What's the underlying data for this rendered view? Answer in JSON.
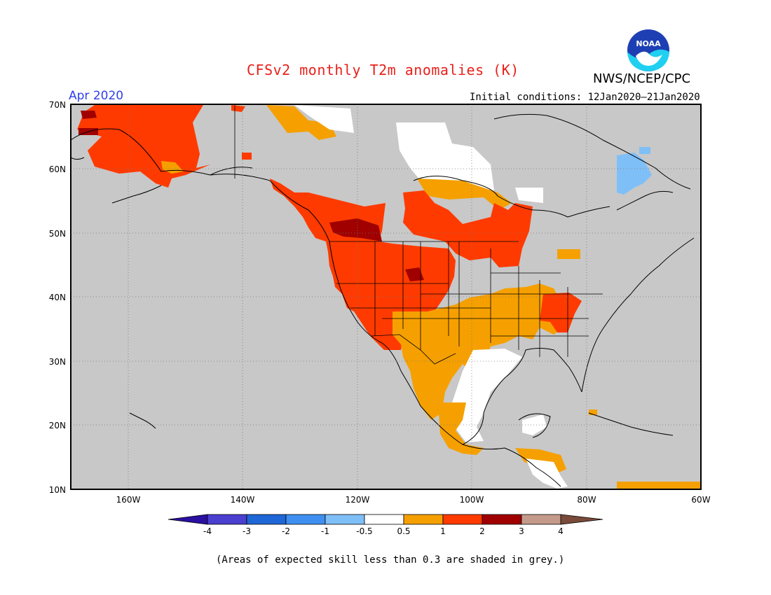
{
  "title": "CFSv2 monthly T2m anomalies (K)",
  "agency": "NWS/NCEP/CPC",
  "logo_text": "NOAA",
  "month_label": "Apr 2020",
  "initial_conditions": "Initial conditions: 12Jan2020–21Jan2020",
  "footnote": "(Areas of expected skill less than 0.3 are shaded in grey.)",
  "map": {
    "lon_labels": [
      "160W",
      "140W",
      "120W",
      "100W",
      "80W",
      "60W"
    ],
    "lat_labels": [
      "70N",
      "60N",
      "50N",
      "40N",
      "30N",
      "20N",
      "10N"
    ],
    "lon_values": [
      -160,
      -140,
      -120,
      -100,
      -80,
      -60
    ],
    "lat_values": [
      70,
      60,
      50,
      40,
      30,
      20,
      10
    ],
    "lon_range": [
      -171,
      -60
    ],
    "lat_range": [
      10,
      70
    ],
    "no_skill_color": "#c8c8c8"
  },
  "colorbar": {
    "tick_labels": [
      "-4",
      "-3",
      "-2",
      "-1",
      "-0.5",
      "0.5",
      "1",
      "2",
      "3",
      "4"
    ],
    "colors": [
      "#2a0fa0",
      "#4a3fcf",
      "#1f66d6",
      "#3f8ff0",
      "#7fbff7",
      "#ffffff",
      "#f5a000",
      "#ff3a00",
      "#a00000",
      "#c49a8a",
      "#7a4a3a"
    ]
  },
  "regions": [
    {
      "name": "alaska-warm",
      "category": "1 to 2"
    },
    {
      "name": "western-us-warm",
      "category": "1 to 2"
    },
    {
      "name": "interior-west-very-warm",
      "category": "2 to 3"
    },
    {
      "name": "central-us-mild",
      "category": "0.5 to 1"
    },
    {
      "name": "gulf-coast-neutral",
      "category": "-0.5 to 0.5"
    },
    {
      "name": "labrador-cool",
      "category": "-1 to -0.5"
    }
  ]
}
